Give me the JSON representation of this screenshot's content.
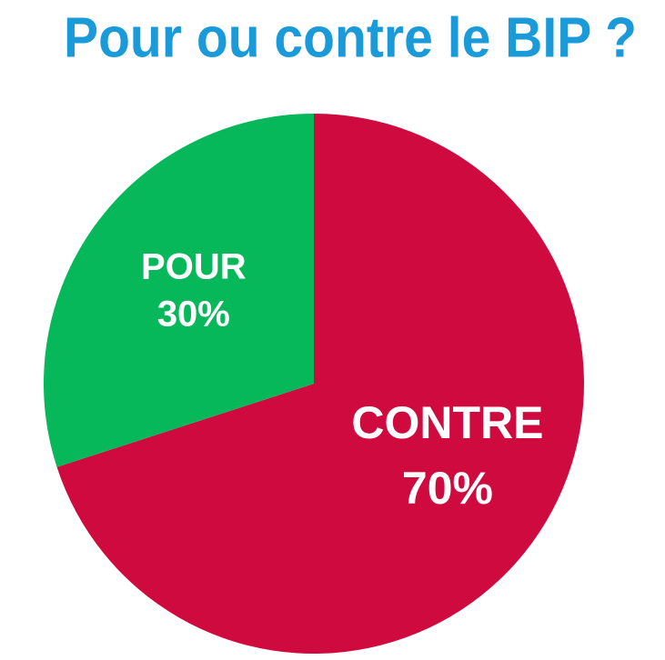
{
  "chart_data": {
    "type": "pie",
    "title": "Pour ou contre le BIP ?",
    "categories": [
      "CONTRE",
      "POUR"
    ],
    "values": [
      70,
      30
    ],
    "value_labels": [
      "70%",
      "30%"
    ],
    "colors": [
      "#cf0a3e",
      "#07b85a"
    ]
  }
}
